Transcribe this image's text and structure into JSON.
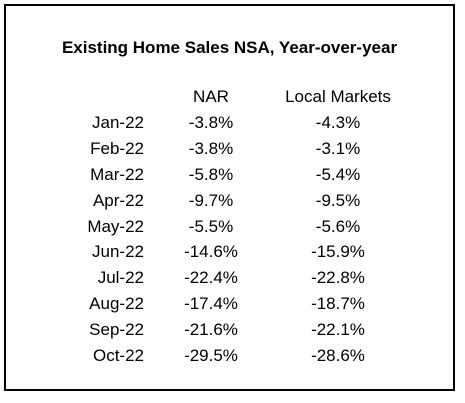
{
  "table": {
    "title": "Existing Home Sales NSA, Year-over-year",
    "columns": [
      "",
      "NAR",
      "Local Markets"
    ],
    "rows": [
      {
        "month": "Jan-22",
        "nar": "-3.8%",
        "local": "-4.3%"
      },
      {
        "month": "Feb-22",
        "nar": "-3.8%",
        "local": "-3.1%"
      },
      {
        "month": "Mar-22",
        "nar": "-5.8%",
        "local": "-5.4%"
      },
      {
        "month": "Apr-22",
        "nar": "-9.7%",
        "local": "-9.5%"
      },
      {
        "month": "May-22",
        "nar": "-5.5%",
        "local": "-5.6%"
      },
      {
        "month": "Jun-22",
        "nar": "-14.6%",
        "local": "-15.9%"
      },
      {
        "month": "Jul-22",
        "nar": "-22.4%",
        "local": "-22.8%"
      },
      {
        "month": "Aug-22",
        "nar": "-17.4%",
        "local": "-18.7%"
      },
      {
        "month": "Sep-22",
        "nar": "-21.6%",
        "local": "-22.1%"
      },
      {
        "month": "Oct-22",
        "nar": "-29.5%",
        "local": "-28.6%"
      }
    ]
  }
}
